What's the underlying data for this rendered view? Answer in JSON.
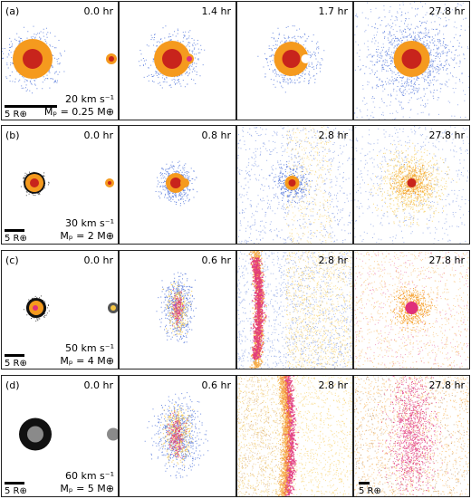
{
  "panels": [
    {
      "label": "(a)",
      "times": [
        "0.0 hr",
        "1.4 hr",
        "1.7 hr",
        "27.8 hr"
      ],
      "speed": "20 km s⁻¹",
      "mass": "Mₚ = 0.25 M⊕",
      "scale_bar": "5 R⊕"
    },
    {
      "label": "(b)",
      "times": [
        "0.0 hr",
        "0.8 hr",
        "2.8 hr",
        "27.8 hr"
      ],
      "speed": "30 km s⁻¹",
      "mass": "Mₚ = 2 M⊕",
      "scale_bar": "5 R⊕"
    },
    {
      "label": "(c)",
      "times": [
        "0.0 hr",
        "0.6 hr",
        "2.8 hr",
        "27.8 hr"
      ],
      "speed": "50 km s⁻¹",
      "mass": "Mₚ = 4 M⊕",
      "scale_bar": "5 R⊕"
    },
    {
      "label": "(d)",
      "times": [
        "0.0 hr",
        "0.6 hr",
        "2.8 hr",
        "27.8 hr"
      ],
      "speed": "60 km s⁻¹",
      "mass": "Mₚ = 5 M⊕",
      "scale_bar": "5 R⊕",
      "extra_scale_bar": "5 R⊕"
    }
  ],
  "colors": {
    "mantle_blue": "#4a6fd8",
    "mantle_orange": "#f59a1e",
    "core_red": "#c8241c",
    "iron_pink": "#e0307a",
    "yellow": "#f5c542",
    "black": "#111111",
    "grey": "#8a8a8a"
  }
}
